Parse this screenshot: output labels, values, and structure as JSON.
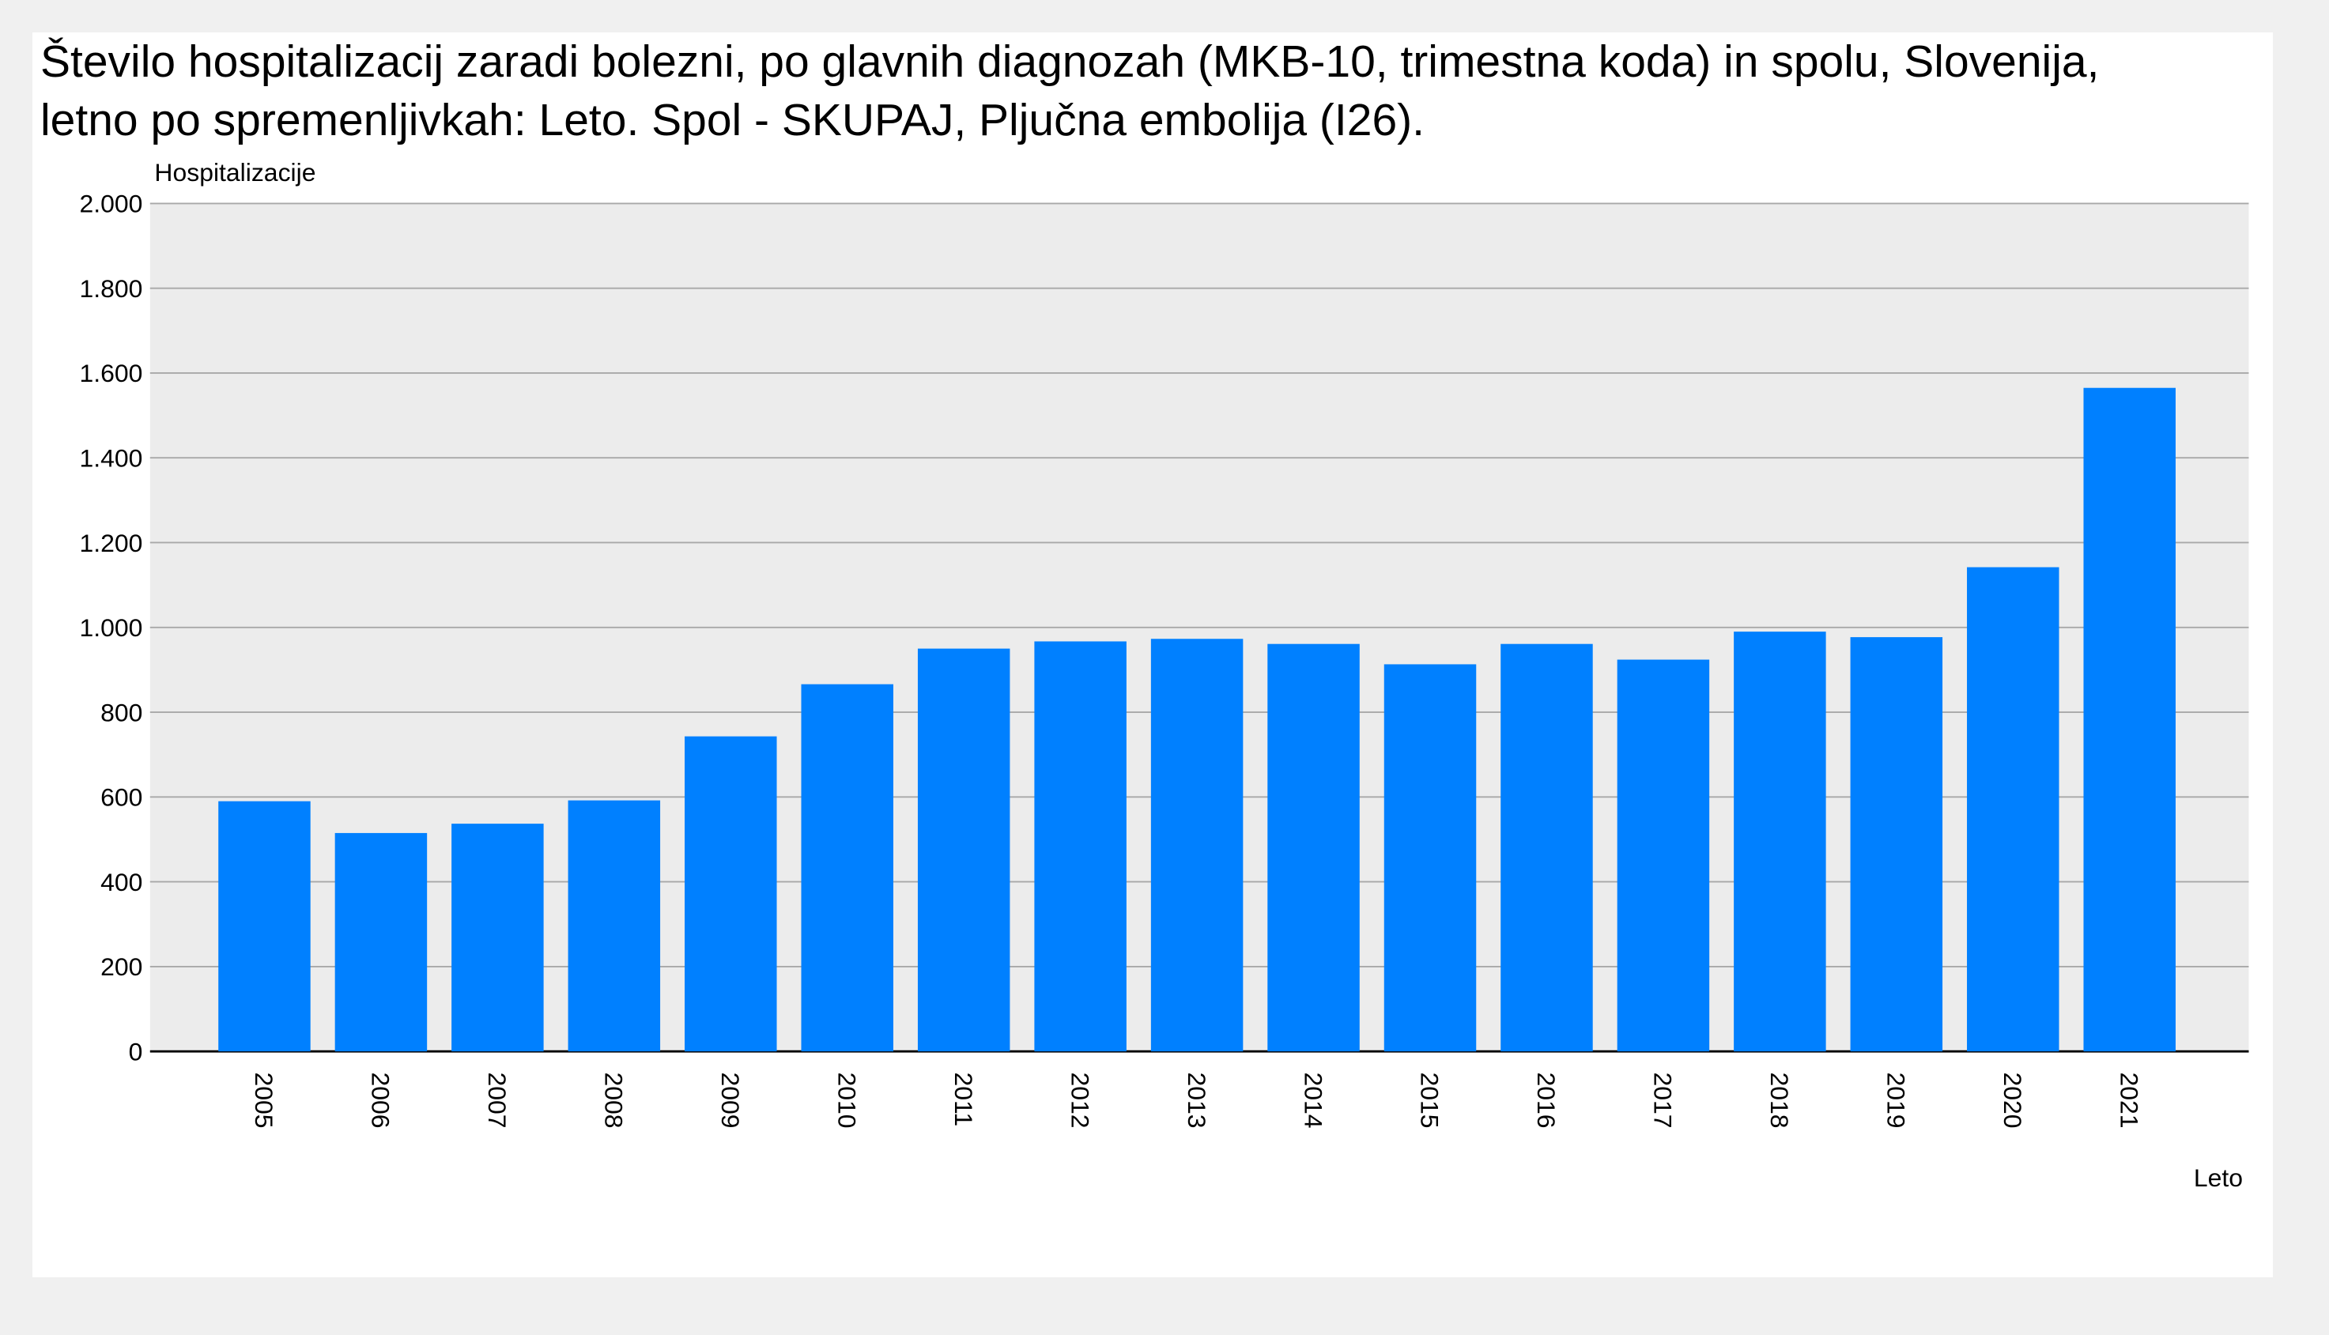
{
  "chart_data": {
    "type": "bar",
    "title": "Število hospitalizacij zaradi bolezni, po glavnih diagnozah (MKB-10, trimestna koda) in spolu, Slovenija, letno po spremenljivkah: Leto. Spol - SKUPAJ, Pljučna embolija (I26).",
    "y_label": "Hospitalizacije",
    "x_label": "Leto",
    "categories": [
      "2005",
      "2006",
      "2007",
      "2008",
      "2009",
      "2010",
      "2011",
      "2012",
      "2013",
      "2014",
      "2015",
      "2016",
      "2017",
      "2018",
      "2019",
      "2020",
      "2021"
    ],
    "values": [
      590,
      515,
      537,
      592,
      743,
      866,
      950,
      967,
      973,
      961,
      913,
      961,
      924,
      990,
      977,
      1142,
      1565
    ],
    "color": "#0080ff",
    "ylim": [
      0,
      2000
    ],
    "yticks": [
      0,
      200,
      400,
      600,
      800,
      {
        "value": 1000,
        "label": "1.000"
      },
      {
        "value": 1200,
        "label": "1.200"
      },
      {
        "value": 1400,
        "label": "1.400"
      },
      {
        "value": 1600,
        "label": "1.600"
      },
      {
        "value": 1800,
        "label": "1.800"
      },
      {
        "value": 2000,
        "label": "2.000"
      }
    ],
    "grid": true
  }
}
